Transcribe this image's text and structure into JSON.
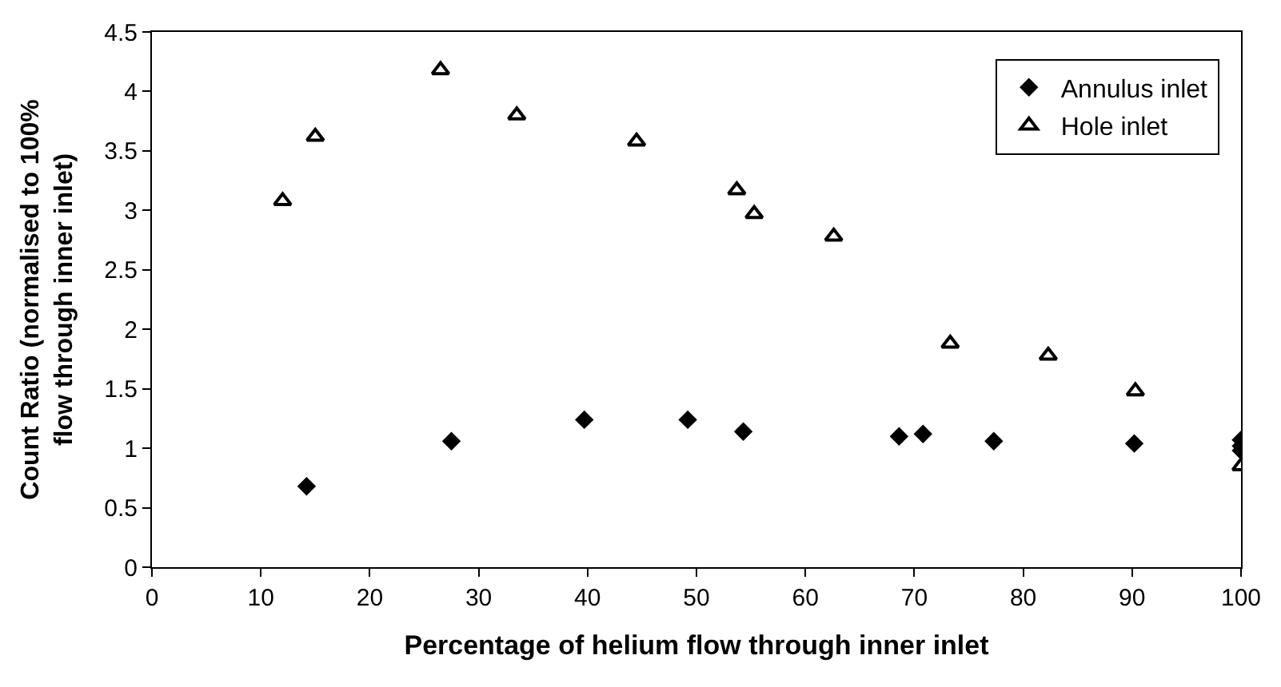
{
  "chart_data": {
    "type": "scatter",
    "xlabel": "Percentage of helium flow through inner inlet",
    "ylabel": "Count Ratio (normalised to 100%\nflow through inner inlet)",
    "xlim": [
      0,
      100
    ],
    "xticks": [
      0,
      10,
      20,
      30,
      40,
      50,
      60,
      70,
      80,
      90,
      100
    ],
    "ylim": [
      0,
      4.5
    ],
    "yticks": [
      0,
      0.5,
      1,
      1.5,
      2,
      2.5,
      3,
      3.5,
      4,
      4.5
    ],
    "legend": "top right",
    "series": [
      {
        "name": "Annulus inlet",
        "color": "#000000",
        "marker": "diamond",
        "x": [
          14.2,
          27.5,
          39.7,
          49.2,
          54.3,
          68.6,
          70.8,
          77.3,
          90.2,
          100,
          100,
          100
        ],
        "values": [
          0.68,
          1.06,
          1.24,
          1.24,
          1.14,
          1.1,
          1.12,
          1.06,
          1.04,
          1.07,
          1.02,
          0.98
        ]
      },
      {
        "name": "Hole inlet",
        "color": "#000000",
        "marker": "triangle",
        "x": [
          12,
          15,
          26.5,
          33.5,
          44.5,
          53.7,
          55.3,
          62.6,
          73.3,
          82.3,
          90.3,
          100
        ],
        "values": [
          3.08,
          3.62,
          4.18,
          3.8,
          3.58,
          3.17,
          2.97,
          2.78,
          1.88,
          1.78,
          1.48,
          0.85
        ]
      }
    ]
  }
}
